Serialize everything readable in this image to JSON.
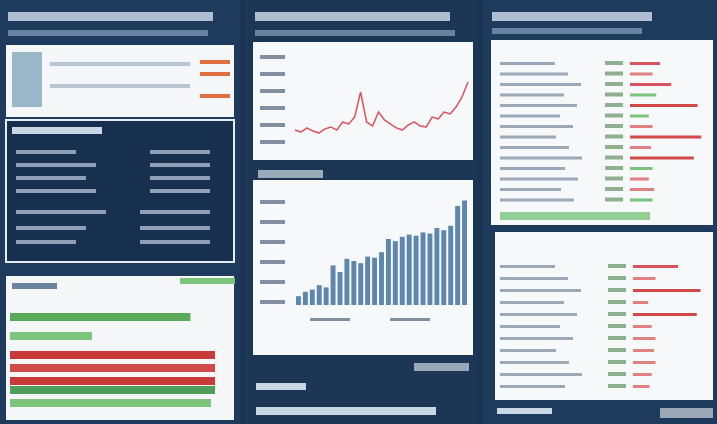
{
  "line_chart": {
    "color": "#d9535e",
    "values": [
      22,
      20,
      24,
      21,
      19,
      23,
      25,
      22,
      30,
      28,
      35,
      60,
      30,
      26,
      40,
      32,
      28,
      24,
      22,
      27,
      30,
      26,
      25,
      35,
      33,
      40,
      38,
      45,
      55,
      70
    ]
  },
  "bar_chart": {
    "color": "#5f86ad",
    "values": [
      8,
      12,
      14,
      18,
      16,
      36,
      30,
      42,
      40,
      38,
      44,
      43,
      48,
      60,
      58,
      62,
      64,
      63,
      66,
      65,
      70,
      68,
      72,
      90,
      95
    ]
  },
  "left_bars": {
    "rows": [
      {
        "value": 88,
        "color": "#5aaa5a"
      },
      {
        "value": 40,
        "color": "#7cc47c"
      },
      {
        "value": 100,
        "color": "#c83a3a"
      },
      {
        "value": 100,
        "color": "#d04848"
      },
      {
        "value": 100,
        "color": "#c83a3a"
      },
      {
        "value": 100,
        "color": "#4e9e5a"
      },
      {
        "value": 98,
        "color": "#7cc47c"
      }
    ]
  },
  "right_bars_top": {
    "rows": [
      {
        "value": 40,
        "color": "#d9535e"
      },
      {
        "value": 30,
        "color": "#e08080"
      },
      {
        "value": 55,
        "color": "#d9535e"
      },
      {
        "value": 35,
        "color": "#7cc47c"
      },
      {
        "value": 90,
        "color": "#d04848"
      },
      {
        "value": 25,
        "color": "#7cc47c"
      },
      {
        "value": 30,
        "color": "#e08080"
      },
      {
        "value": 95,
        "color": "#d04848"
      },
      {
        "value": 28,
        "color": "#e08080"
      },
      {
        "value": 85,
        "color": "#d04848"
      },
      {
        "value": 30,
        "color": "#7cc47c"
      },
      {
        "value": 25,
        "color": "#e08080"
      },
      {
        "value": 32,
        "color": "#e08080"
      },
      {
        "value": 30,
        "color": "#7cc47c"
      }
    ]
  },
  "right_bars_bottom": {
    "rows": [
      {
        "value": 60,
        "color": "#d9535e"
      },
      {
        "value": 30,
        "color": "#e08080"
      },
      {
        "value": 90,
        "color": "#d04848"
      },
      {
        "value": 20,
        "color": "#e08080"
      },
      {
        "value": 85,
        "color": "#d04848"
      },
      {
        "value": 25,
        "color": "#e08080"
      },
      {
        "value": 30,
        "color": "#e08080"
      },
      {
        "value": 28,
        "color": "#e08080"
      },
      {
        "value": 30,
        "color": "#e08080"
      },
      {
        "value": 25,
        "color": "#e08080"
      },
      {
        "value": 22,
        "color": "#e08080"
      }
    ]
  }
}
